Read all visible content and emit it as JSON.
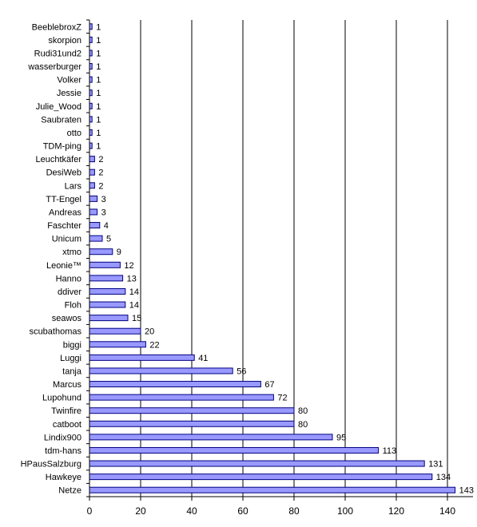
{
  "chart_data": {
    "type": "bar",
    "orientation": "horizontal",
    "categories": [
      "BeeblebroxZ",
      "skorpion",
      "Rudi31und2",
      "wasserburger",
      "Volker",
      "Jessie",
      "Julie_Wood",
      "Saubraten",
      "otto",
      "TDM-ping",
      "Leuchtkäfer",
      "DesiWeb",
      "Lars",
      "TT-Engel",
      "Andreas",
      "Faschter",
      "Unicum",
      "xtmo",
      "Leonie™",
      "Hanno",
      "ddiver",
      "Floh",
      "seawos",
      "scubathomas",
      "biggi",
      "Luggi",
      "tanja",
      "Marcus",
      "Lupohund",
      "Twinfire",
      "catboot",
      "Lindix900",
      "tdm-hans",
      "HPausSalzburg",
      "Hawkeye",
      "Netze"
    ],
    "values": [
      1,
      1,
      1,
      1,
      1,
      1,
      1,
      1,
      1,
      1,
      2,
      2,
      2,
      3,
      3,
      4,
      5,
      9,
      12,
      13,
      14,
      14,
      15,
      20,
      22,
      41,
      56,
      67,
      72,
      80,
      80,
      95,
      113,
      131,
      134,
      143
    ],
    "value_labels": [
      "1",
      "1",
      "1",
      "1",
      "1",
      "1",
      "1",
      "1",
      "1",
      "1",
      "2",
      "2",
      "2",
      "3",
      "3",
      "4",
      "5",
      "9",
      "12",
      "13",
      "14",
      "14",
      "15",
      "20",
      "22",
      "41",
      "56",
      "67",
      "72",
      "80",
      "80",
      "95",
      "113",
      "131",
      "134",
      "143"
    ],
    "x_ticks": [
      "0",
      "20",
      "40",
      "60",
      "80",
      "100",
      "120",
      "140"
    ],
    "xlim": [
      0,
      150
    ],
    "grid": "vertical",
    "legend": "none",
    "colors": {
      "bar_fill": "#9999ff",
      "bar_stroke": "#000080",
      "axis": "#000000",
      "grid": "#000000"
    }
  }
}
